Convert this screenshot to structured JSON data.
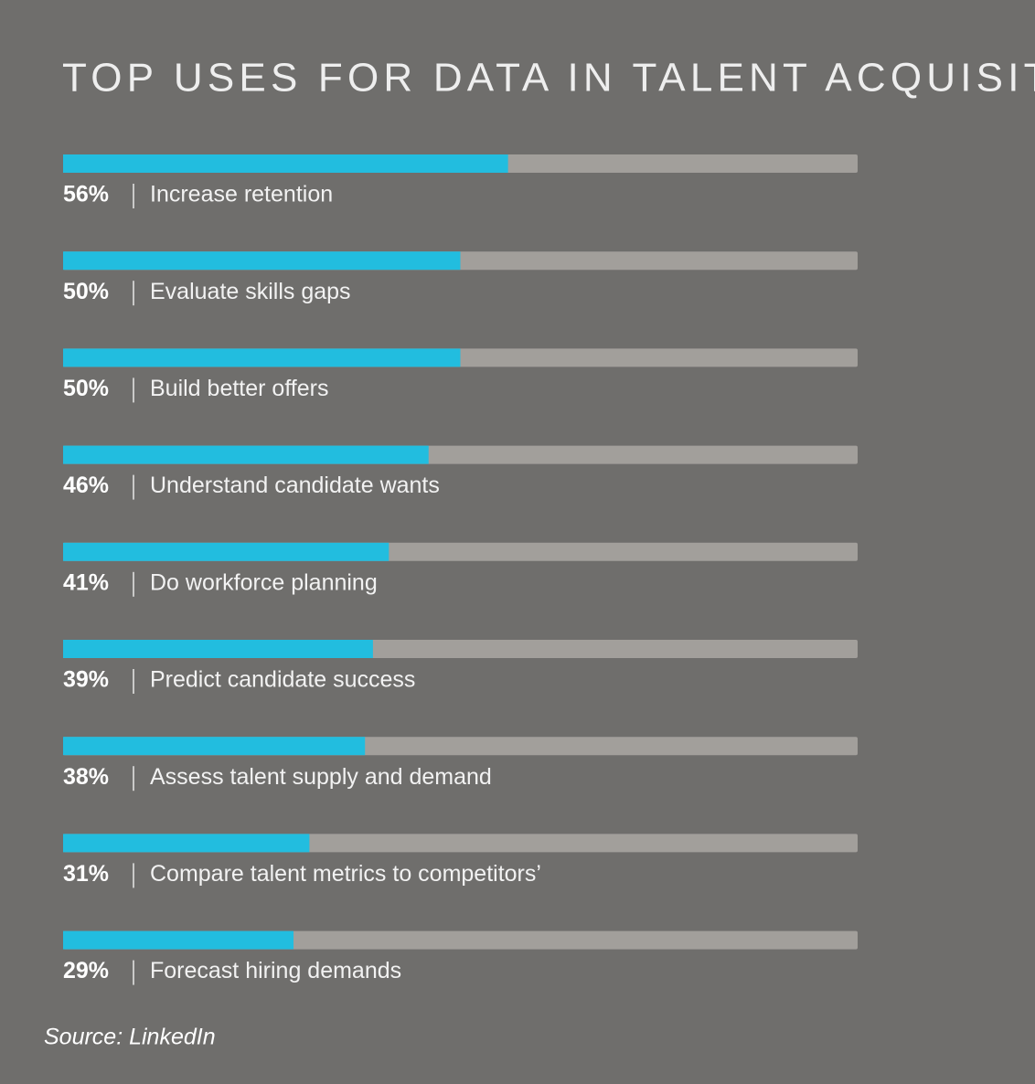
{
  "chart_data": {
    "type": "bar",
    "orientation": "horizontal",
    "title": "TOP USES FOR DATA IN TALENT ACQUISITION",
    "categories": [
      "Increase retention",
      "Evaluate skills gaps",
      "Build better offers",
      "Understand candidate wants",
      "Do workforce planning",
      "Predict candidate success",
      "Assess talent supply and demand",
      "Compare talent metrics to competitors’",
      "Forecast hiring demands"
    ],
    "values": [
      56,
      50,
      50,
      46,
      41,
      39,
      38,
      31,
      29
    ],
    "value_labels": [
      "56%",
      "50%",
      "50%",
      "46%",
      "41%",
      "39%",
      "38%",
      "31%",
      "29%"
    ],
    "color": "#22bddf",
    "xlim": [
      0,
      100
    ],
    "source": "Source: LinkedIn"
  }
}
